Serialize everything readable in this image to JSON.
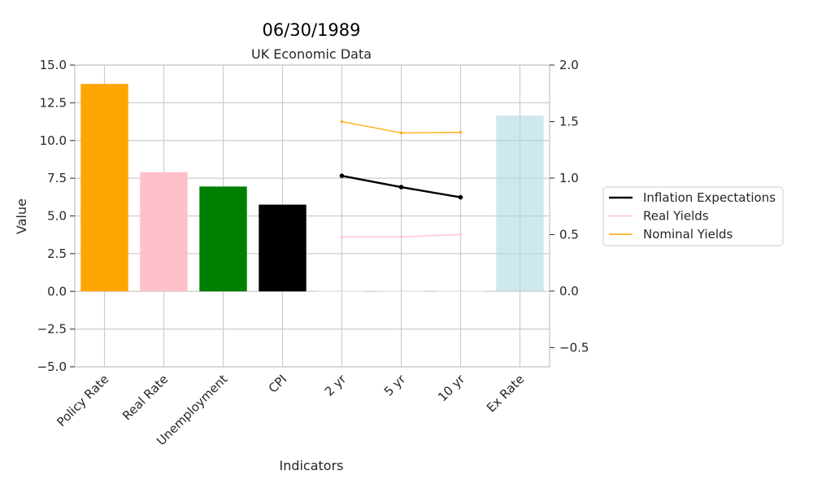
{
  "chart_data": {
    "type": "bar",
    "title": "06/30/1989",
    "subtitle": "UK Economic Data",
    "xlabel": "Indicators",
    "ylabel": "Value",
    "categories": [
      "Policy Rate",
      "Real Rate",
      "Unemployment",
      "CPI",
      "2 yr",
      "5 yr",
      "10 yr",
      "Ex Rate"
    ],
    "values": [
      13.75,
      7.9,
      6.95,
      5.75,
      0,
      0,
      0,
      11.65
    ],
    "bar_colors": [
      "#ffa500",
      "#ffc0cb",
      "#008000",
      "#000000",
      "#ffffff",
      "#ffffff",
      "#ffffff",
      "#add8e6"
    ],
    "ylim": [
      -5,
      15
    ],
    "yticks": [
      -5.0,
      -2.5,
      0.0,
      2.5,
      5.0,
      7.5,
      10.0,
      12.5,
      15.0
    ],
    "y2lim": [
      -0.67,
      2.0
    ],
    "y2ticks": [
      -0.5,
      0.0,
      0.5,
      1.0,
      1.5,
      2.0
    ],
    "grid": true,
    "legend_placement": "right",
    "series": [
      {
        "name": "Inflation Expectations",
        "axis": "right",
        "color": "#000000",
        "x": [
          "2 yr",
          "5 yr",
          "10 yr"
        ],
        "values": [
          1.02,
          0.92,
          0.83
        ]
      },
      {
        "name": "Real Yields",
        "axis": "right",
        "color": "#ffc0cb",
        "x": [
          "2 yr",
          "5 yr",
          "10 yr"
        ],
        "values": [
          0.48,
          0.48,
          0.5
        ]
      },
      {
        "name": "Nominal Yields",
        "axis": "right",
        "color": "#ffa500",
        "x": [
          "2 yr",
          "5 yr",
          "10 yr"
        ],
        "values": [
          1.5,
          1.4,
          1.405
        ]
      }
    ]
  }
}
